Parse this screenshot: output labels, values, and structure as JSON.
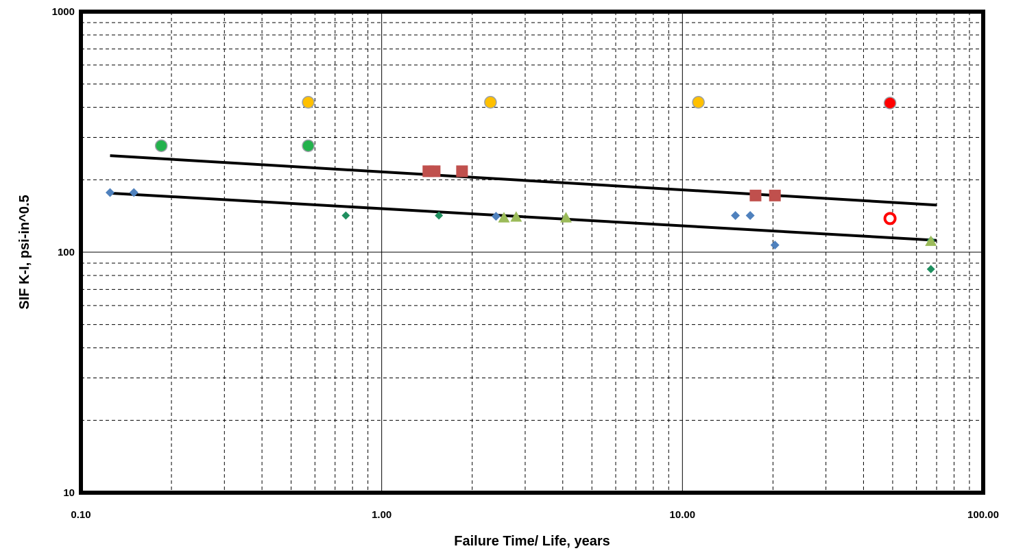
{
  "chart_data": {
    "type": "scatter",
    "title": "",
    "xlabel": "Failure Time/ Life, years",
    "ylabel": "SIF   K-I, psi-in^0.5",
    "x_scale": "log",
    "y_scale": "log",
    "xlim": [
      0.1,
      100
    ],
    "ylim": [
      10,
      1000
    ],
    "x_tick_labels": [
      "0.10",
      "1.00",
      "10.00",
      "100.00"
    ],
    "y_tick_labels": [
      "10",
      "100",
      "1000"
    ],
    "x_major_ticks": [
      0.1,
      1,
      10,
      100
    ],
    "y_major_ticks": [
      10,
      100,
      1000
    ],
    "x_minor_ticks": [
      0.2,
      0.3,
      0.4,
      0.5,
      0.6,
      0.7,
      0.8,
      0.9,
      2,
      3,
      4,
      5,
      6,
      7,
      8,
      9,
      20,
      30,
      40,
      50,
      60,
      70,
      80,
      90
    ],
    "y_minor_ticks": [
      20,
      30,
      40,
      50,
      60,
      70,
      80,
      90,
      200,
      300,
      400,
      500,
      600,
      700,
      800,
      900
    ],
    "grid": {
      "major": "solid",
      "minor": "dashed"
    },
    "legend": "none",
    "series": [
      {
        "marker": "diamond",
        "color": "#4f81bd",
        "size": 13,
        "points": [
          [
            0.125,
            177
          ],
          [
            0.15,
            177
          ],
          [
            2.4,
            141
          ],
          [
            15,
            142
          ],
          [
            16.8,
            142
          ],
          [
            20.3,
            107
          ]
        ]
      },
      {
        "marker": "diamond",
        "color": "#1f8f5f",
        "size": 12,
        "points": [
          [
            0.76,
            142
          ],
          [
            1.55,
            142
          ],
          [
            67,
            112
          ],
          [
            67,
            85
          ]
        ]
      },
      {
        "marker": "circle",
        "color": "#23b24c",
        "stroke": "#9aa0a6",
        "size": 17,
        "points": [
          [
            0.185,
            277
          ],
          [
            0.57,
            277
          ]
        ]
      },
      {
        "marker": "circle",
        "color": "#ffc000",
        "stroke": "#9aa0a6",
        "size": 17,
        "points": [
          [
            0.57,
            420
          ],
          [
            2.3,
            420
          ],
          [
            11.3,
            420
          ]
        ]
      },
      {
        "marker": "circle",
        "color": "#ff0000",
        "stroke": "#9aa0a6",
        "size": 17,
        "points": [
          [
            49,
            417
          ]
        ]
      },
      {
        "marker": "square",
        "color": "#c0504d",
        "size": 17,
        "points": [
          [
            1.43,
            217
          ],
          [
            1.5,
            217
          ],
          [
            1.85,
            217
          ],
          [
            17.5,
            172
          ],
          [
            20.3,
            172
          ]
        ]
      },
      {
        "marker": "triangle",
        "color": "#9bbb59",
        "size": 17,
        "points": [
          [
            2.55,
            139
          ],
          [
            2.8,
            140
          ],
          [
            4.1,
            139
          ],
          [
            67,
            111
          ]
        ]
      },
      {
        "marker": "ring",
        "color": "#ff0000",
        "size": 19,
        "points": [
          [
            49,
            138
          ]
        ]
      }
    ],
    "trendlines": [
      {
        "color": "#000000",
        "points": [
          [
            0.125,
            252
          ],
          [
            70,
            157
          ]
        ]
      },
      {
        "color": "#000000",
        "points": [
          [
            0.125,
            176
          ],
          [
            70,
            112
          ]
        ]
      }
    ]
  }
}
